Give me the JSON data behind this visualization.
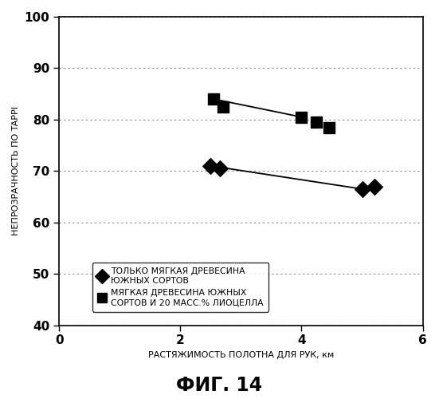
{
  "title": "ФИГ. 14",
  "xlabel": "РАСТЯЖИМОСТЬ ПОЛОТНА ДЛЯ РУК, км",
  "ylabel": "НЕПРОЗРАЧНОСТЬ ПО TAPPI",
  "xlim": [
    0,
    6
  ],
  "ylim": [
    40,
    100
  ],
  "xticks": [
    0,
    2,
    4,
    6
  ],
  "yticks": [
    40,
    50,
    60,
    70,
    80,
    90,
    100
  ],
  "series1_x": [
    2.5,
    2.65,
    5.0,
    5.2
  ],
  "series1_y": [
    71.0,
    70.5,
    66.5,
    67.0
  ],
  "series2_x": [
    2.55,
    2.7,
    4.0,
    4.25,
    4.45
  ],
  "series2_y": [
    84.0,
    82.5,
    80.5,
    79.5,
    78.5
  ],
  "series1_line_x": [
    2.5,
    5.0
  ],
  "series1_line_y": [
    71.0,
    66.5
  ],
  "series2_line_x": [
    2.55,
    4.0
  ],
  "series2_line_y": [
    84.0,
    80.5
  ],
  "series1_label": "ТОЛЬКО МЯГКАЯ ДРЕВЕСИНА\nЮЖНЫХ СОРТОВ",
  "series2_label": "МЯГКАЯ ДРЕВЕСИНА ЮЖНЫХ\nСОРТОВ И 20 МАСС.% ЛИОЦЕЛЛА",
  "line_color": "#000000",
  "marker_color": "#000000",
  "background_color": "#ffffff",
  "grid_color": "#888888"
}
